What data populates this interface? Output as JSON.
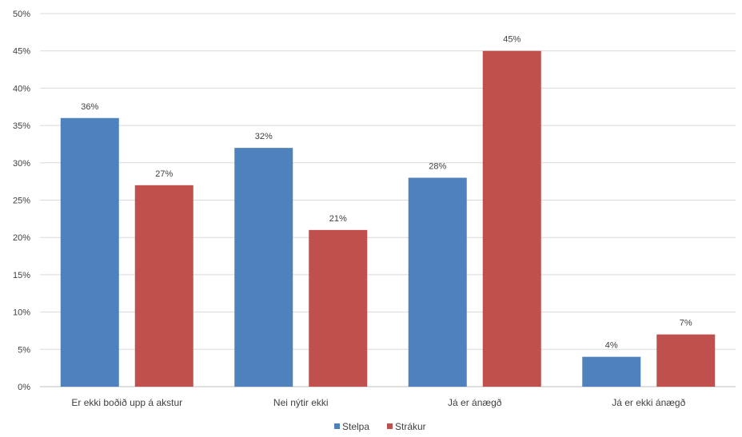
{
  "chart_data": {
    "type": "bar",
    "categories": [
      "Er ekki boðið upp á akstur",
      "Nei nýtir ekki",
      "Já er ánægð",
      "Já er ekki ánægð"
    ],
    "series": [
      {
        "name": "Stelpa",
        "color": "#4F81BD",
        "values": [
          36,
          32,
          28,
          4
        ]
      },
      {
        "name": "Strákur",
        "color": "#C0504D",
        "values": [
          27,
          21,
          45,
          7
        ]
      }
    ],
    "data_labels": [
      [
        "36%",
        "32%",
        "28%",
        "4%"
      ],
      [
        "27%",
        "21%",
        "45%",
        "7%"
      ]
    ],
    "yticks": [
      "0%",
      "5%",
      "10%",
      "15%",
      "20%",
      "25%",
      "30%",
      "35%",
      "40%",
      "45%",
      "50%"
    ],
    "ylim": [
      0,
      50
    ],
    "ytick_step": 5,
    "grid": true,
    "legend": "bottom-center",
    "gridline_color": "#D9D9D9"
  }
}
